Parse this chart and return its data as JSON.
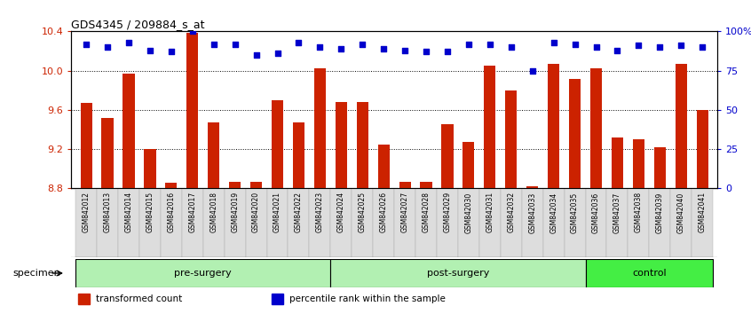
{
  "title": "GDS4345 / 209884_s_at",
  "samples": [
    "GSM842012",
    "GSM842013",
    "GSM842014",
    "GSM842015",
    "GSM842016",
    "GSM842017",
    "GSM842018",
    "GSM842019",
    "GSM842020",
    "GSM842021",
    "GSM842022",
    "GSM842023",
    "GSM842024",
    "GSM842025",
    "GSM842026",
    "GSM842027",
    "GSM842028",
    "GSM842029",
    "GSM842030",
    "GSM842031",
    "GSM842032",
    "GSM842033",
    "GSM842034",
    "GSM842035",
    "GSM842036",
    "GSM842037",
    "GSM842038",
    "GSM842039",
    "GSM842040",
    "GSM842041"
  ],
  "bar_values": [
    9.67,
    9.52,
    9.97,
    9.2,
    8.86,
    10.39,
    9.47,
    8.87,
    8.87,
    9.7,
    9.47,
    10.02,
    9.68,
    9.68,
    9.25,
    8.87,
    8.87,
    9.45,
    9.27,
    10.05,
    9.8,
    8.82,
    10.07,
    9.92,
    10.02,
    9.32,
    9.3,
    9.22,
    10.07,
    9.6
  ],
  "percentile_values": [
    92,
    90,
    93,
    88,
    87,
    100,
    92,
    92,
    85,
    86,
    93,
    90,
    89,
    92,
    89,
    88,
    87,
    87,
    92,
    92,
    90,
    75,
    93,
    92,
    90,
    88,
    91,
    90,
    91,
    90
  ],
  "groups": [
    {
      "label": "pre-surgery",
      "start": 0,
      "end": 12,
      "color": "#b2f0b2"
    },
    {
      "label": "post-surgery",
      "start": 12,
      "end": 24,
      "color": "#b2f0b2"
    },
    {
      "label": "control",
      "start": 24,
      "end": 30,
      "color": "#44ee44"
    }
  ],
  "ylim_left": [
    8.8,
    10.4
  ],
  "ylim_right": [
    0,
    100
  ],
  "yticks_left": [
    8.8,
    9.2,
    9.6,
    10.0,
    10.4
  ],
  "yticks_right": [
    0,
    25,
    50,
    75,
    100
  ],
  "ytick_labels_right": [
    "0",
    "25",
    "50",
    "75",
    "100%"
  ],
  "bar_color": "#cc2200",
  "dot_color": "#0000cc",
  "bar_bottom": 8.8,
  "specimen_label": "specimen",
  "legend_items": [
    {
      "color": "#cc2200",
      "label": "transformed count"
    },
    {
      "color": "#0000cc",
      "label": "percentile rank within the sample"
    }
  ],
  "figsize": [
    8.46,
    3.54
  ],
  "dpi": 100
}
